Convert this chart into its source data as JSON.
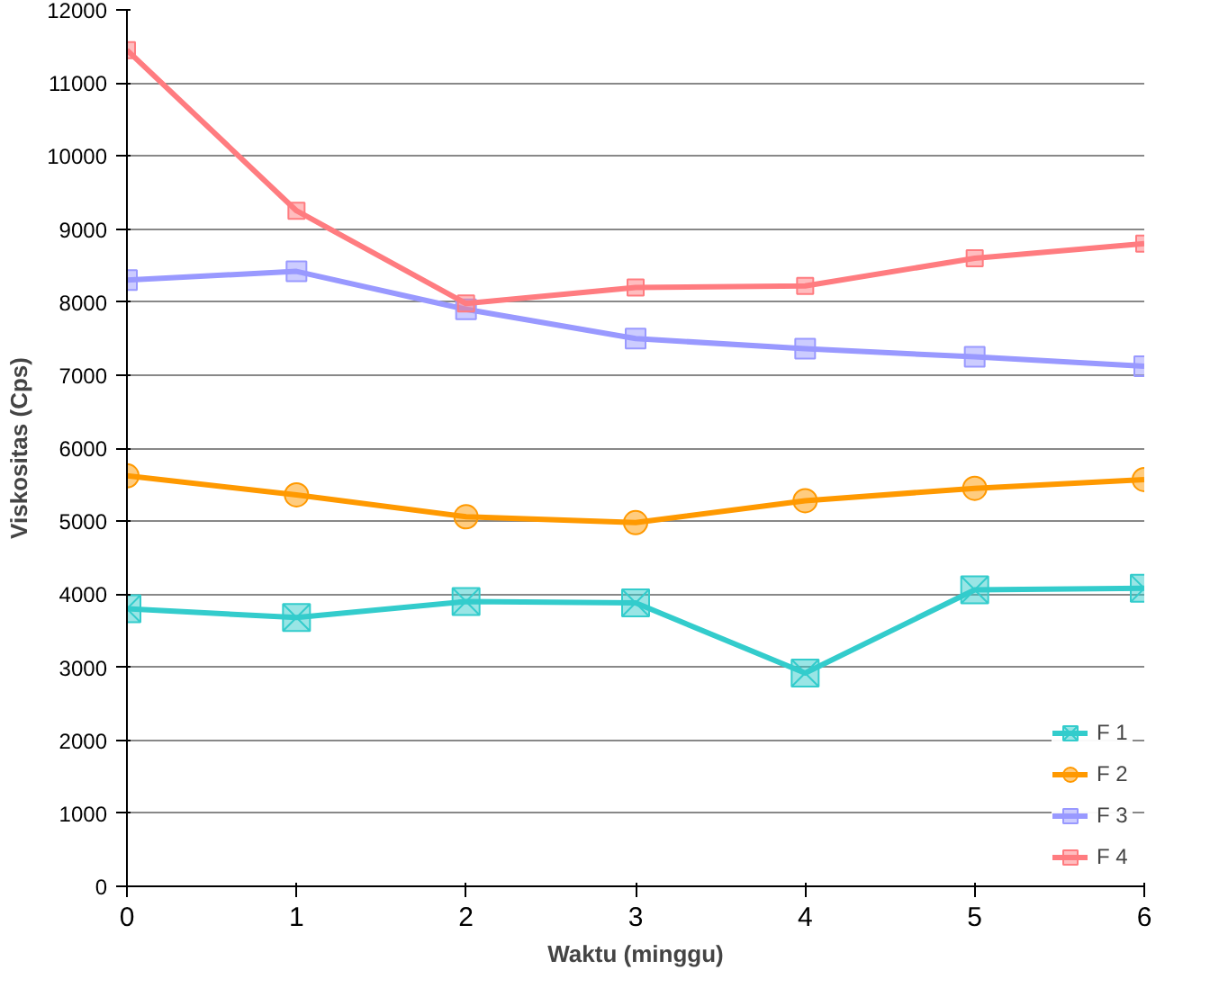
{
  "chart_data": {
    "type": "line",
    "xlabel": "Waktu (minggu)",
    "ylabel": "Viskositas (Cps)",
    "x": [
      0,
      1,
      2,
      3,
      4,
      5,
      6
    ],
    "xlim": [
      0,
      6
    ],
    "xticks": [
      0,
      1,
      2,
      3,
      4,
      5,
      6
    ],
    "ylim": [
      0,
      12000
    ],
    "yticks": [
      0,
      1000,
      2000,
      3000,
      4000,
      5000,
      6000,
      7000,
      8000,
      9000,
      10000,
      11000,
      12000
    ],
    "grid": "y",
    "legend": "bottom right",
    "line_style": "solid",
    "series": [
      {
        "name": "F 1",
        "color": "#33cccc",
        "marker": "cross",
        "values": [
          3800,
          3680,
          3900,
          3880,
          2920,
          4060,
          4080
        ]
      },
      {
        "name": "F 2",
        "color": "#ff9900",
        "marker": "circle",
        "values": [
          5620,
          5360,
          5060,
          4980,
          5280,
          5450,
          5570
        ]
      },
      {
        "name": "F 3",
        "color": "#9999ff",
        "marker": "square",
        "values": [
          8300,
          8420,
          7900,
          7500,
          7360,
          7250,
          7120
        ]
      },
      {
        "name": "F 4",
        "color": "#ff7c80",
        "marker": "square",
        "values": [
          11450,
          9250,
          7980,
          8200,
          8220,
          8600,
          8800
        ]
      }
    ]
  }
}
